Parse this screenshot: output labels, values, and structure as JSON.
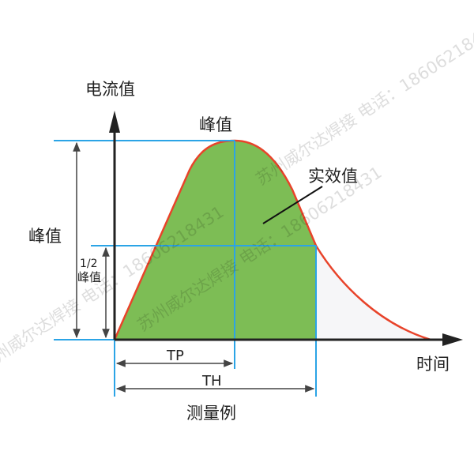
{
  "labels": {
    "y_axis": "电流值",
    "x_axis": "时间",
    "peak_top": "峰值",
    "peak_left": "峰值",
    "half_peak_line1": "1/2",
    "half_peak_line2": "峰值",
    "effective_value": "实效值",
    "tp": "TP",
    "th": "TH",
    "caption": "测量例"
  },
  "watermark": "苏州威尔达焊接 电话：18606218431",
  "colors": {
    "fill": "#7dbd55",
    "curve": "#e8432a",
    "guides": "#2ba4e6",
    "axis": "#222222",
    "dim_arrows": "#555555"
  }
}
